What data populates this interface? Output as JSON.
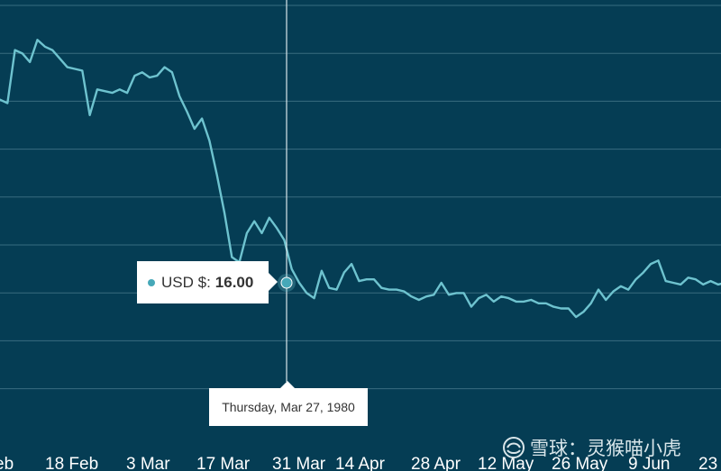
{
  "chart_data": {
    "type": "line",
    "title": "",
    "xlabel": "",
    "ylabel": "",
    "grid": true,
    "x_tick_labels": [
      "eb",
      "18 Feb",
      "3 Mar",
      "17 Mar",
      "31 Mar",
      "14 Apr",
      "28 Apr",
      "12 May",
      "26 May",
      "9 Jun",
      "23"
    ],
    "series": [
      {
        "name": "USD $",
        "values": [
          26.7,
          26.5,
          29.6,
          29.4,
          28.9,
          30.2,
          29.8,
          29.6,
          29.1,
          28.6,
          28.5,
          28.4,
          25.8,
          27.3,
          27.2,
          27.1,
          27.3,
          27.1,
          28.1,
          28.3,
          28.0,
          28.1,
          28.6,
          28.3,
          26.9,
          26.0,
          25.0,
          25.6,
          24.3,
          22.3,
          20.1,
          17.5,
          17.2,
          18.9,
          19.6,
          18.9,
          19.8,
          19.2,
          18.5,
          16.8,
          16.0,
          15.4,
          15.1,
          16.7,
          15.7,
          15.6,
          16.6,
          17.1,
          16.1,
          16.2,
          16.2,
          15.7,
          15.6,
          15.6,
          15.5,
          15.2,
          15.0,
          15.2,
          15.3,
          16.0,
          15.3,
          15.4,
          15.4,
          14.6,
          15.1,
          15.3,
          14.9,
          15.2,
          15.1,
          14.9,
          14.9,
          15.0,
          14.8,
          14.8,
          14.6,
          14.5,
          14.5,
          14.0,
          14.3,
          14.8,
          15.6,
          15.0,
          15.5,
          15.8,
          15.6,
          16.2,
          16.6,
          17.1,
          17.3,
          16.1,
          16.0,
          15.9,
          16.3,
          16.2,
          15.9,
          16.1,
          15.9,
          16.0
        ],
        "color": "#6ec3cf"
      }
    ],
    "highlighted_point": {
      "series": "USD $",
      "value": "16.00",
      "date": "Thursday, Mar 27, 1980"
    }
  },
  "tooltip": {
    "series_label": "USD $:",
    "value": "16.00",
    "date": "Thursday, Mar 27, 1980"
  },
  "watermark": {
    "text": "雪球：灵猴喵小虎"
  },
  "colors": {
    "background": "#053d54",
    "series": "#6ec3cf",
    "marker": "#46a8b8",
    "tooltip_bg": "#ffffff"
  }
}
